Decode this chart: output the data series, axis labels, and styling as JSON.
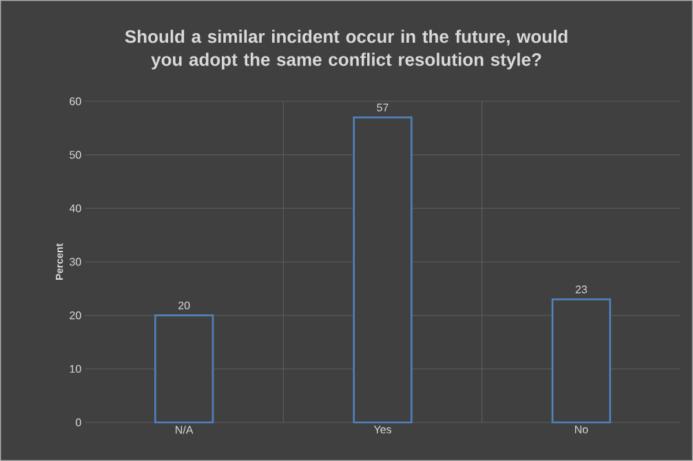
{
  "chart_data": {
    "type": "bar",
    "title": "Should a similar incident occur in the future, would you adopt the same conflict resolution style?",
    "ylabel": "Percent",
    "categories": [
      "N/A",
      "Yes",
      "No"
    ],
    "values": [
      20,
      57,
      23
    ],
    "color": "#4f81bd",
    "ylim": [
      0,
      60
    ],
    "yticks": [
      0,
      10,
      20,
      30,
      40,
      50,
      60
    ],
    "grid": true,
    "data_labels": true
  }
}
